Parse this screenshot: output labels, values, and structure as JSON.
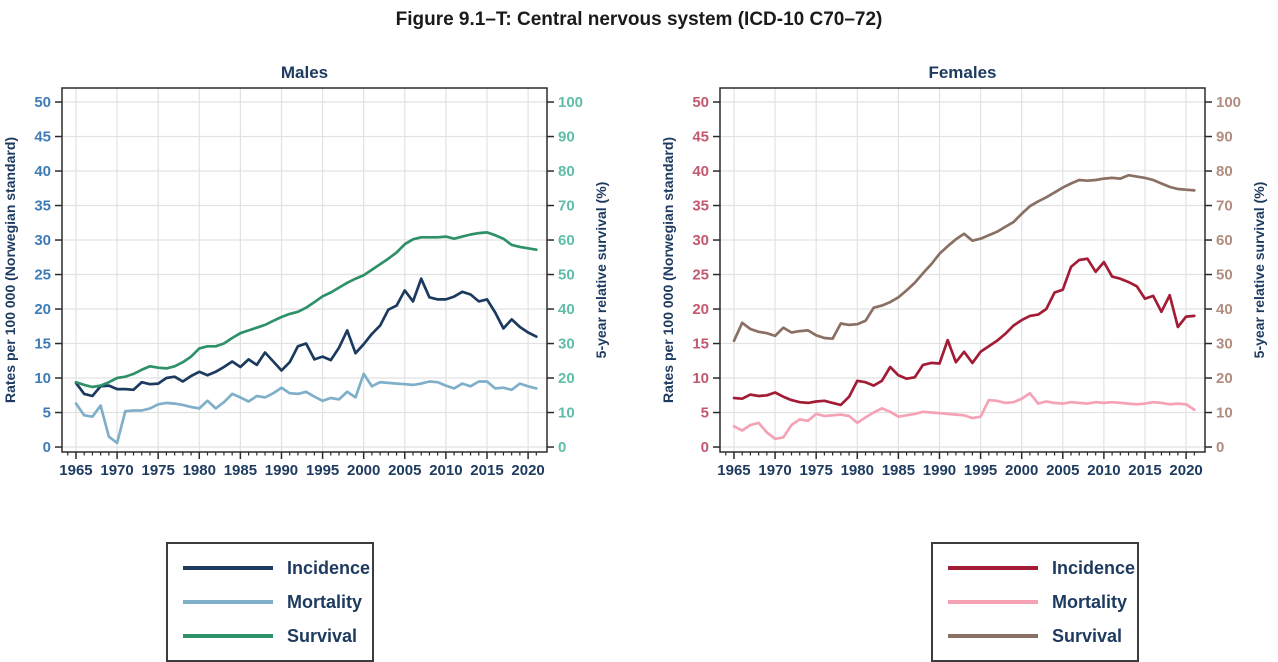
{
  "figure": {
    "title": "Figure 9.1–T: Central nervous system (ICD-10 C70–72)"
  },
  "style": {
    "grid_color": "#E2E2E2",
    "border_color": "#2B2B2B",
    "text_navy": "#1D3A5F",
    "title_color": "#1A1A1A"
  },
  "chart_data": [
    {
      "type": "line",
      "title": "Males",
      "ylabel_left": "Rates per 100 000 (Norwegian standard)",
      "ylabel_right": "5-year relative survival (%)",
      "x_start": 1965,
      "x_end": 2021,
      "x_ticks": [
        1965,
        1970,
        1975,
        1980,
        1985,
        1990,
        1995,
        2000,
        2005,
        2010,
        2015,
        2020
      ],
      "ylim_left": [
        0,
        50
      ],
      "yticks_left": [
        0,
        5,
        10,
        15,
        20,
        25,
        30,
        35,
        40,
        45,
        50
      ],
      "ylim_right": [
        0,
        100
      ],
      "yticks_right": [
        0,
        10,
        20,
        30,
        40,
        50,
        60,
        70,
        80,
        90,
        100
      ],
      "tick_color_left": "#3E7CB8",
      "tick_color_right": "#5EBEA8",
      "grid": true,
      "legend_position": "below",
      "series": [
        {
          "name": "Incidence",
          "axis": "left",
          "color": "#1B3A5E",
          "values": [
            9.3,
            7.7,
            7.4,
            8.8,
            8.9,
            8.4,
            8.4,
            8.3,
            9.4,
            9.1,
            9.2,
            10.0,
            10.2,
            9.5,
            10.3,
            10.9,
            10.4,
            10.9,
            11.6,
            12.4,
            11.6,
            12.7,
            11.9,
            13.7,
            12.4,
            11.1,
            12.3,
            14.6,
            15.0,
            12.7,
            13.1,
            12.6,
            14.4,
            16.9,
            13.6,
            14.9,
            16.4,
            17.6,
            19.9,
            20.5,
            22.7,
            21.1,
            24.4,
            21.7,
            21.4,
            21.4,
            21.8,
            22.5,
            22.1,
            21.1,
            21.4,
            19.5,
            17.2,
            18.5,
            17.4,
            16.6,
            16.0
          ]
        },
        {
          "name": "Mortality",
          "axis": "left",
          "color": "#7FAFC9",
          "values": [
            6.3,
            4.6,
            4.4,
            6.0,
            1.5,
            0.6,
            5.2,
            5.3,
            5.3,
            5.6,
            6.2,
            6.4,
            6.3,
            6.1,
            5.8,
            5.6,
            6.7,
            5.6,
            6.5,
            7.7,
            7.2,
            6.6,
            7.4,
            7.2,
            7.8,
            8.6,
            7.8,
            7.7,
            8.0,
            7.3,
            6.7,
            7.1,
            6.9,
            8.0,
            7.2,
            10.6,
            8.8,
            9.4,
            9.3,
            9.2,
            9.1,
            9.0,
            9.2,
            9.5,
            9.4,
            8.9,
            8.5,
            9.2,
            8.8,
            9.5,
            9.5,
            8.5,
            8.6,
            8.3,
            9.2,
            8.8,
            8.5
          ]
        },
        {
          "name": "Survival",
          "axis": "right",
          "color": "#2E9167",
          "values": [
            18.8,
            18.0,
            17.4,
            17.8,
            18.8,
            20.0,
            20.4,
            21.2,
            22.4,
            23.4,
            23.0,
            22.8,
            23.4,
            24.6,
            26.2,
            28.6,
            29.2,
            29.2,
            30.0,
            31.6,
            33.0,
            33.8,
            34.6,
            35.4,
            36.6,
            37.7,
            38.6,
            39.2,
            40.4,
            42.0,
            43.7,
            44.8,
            46.2,
            47.6,
            48.8,
            49.8,
            51.4,
            53.0,
            54.6,
            56.4,
            58.8,
            60.2,
            60.8,
            60.8,
            60.8,
            61.0,
            60.4,
            61.0,
            61.6,
            62.0,
            62.2,
            61.4,
            60.4,
            58.6,
            58.0,
            57.6,
            57.2
          ]
        }
      ]
    },
    {
      "type": "line",
      "title": "Females",
      "ylabel_left": "Rates per 100 000 (Norwegian standard)",
      "ylabel_right": "5-year relative survival (%)",
      "x_start": 1965,
      "x_end": 2021,
      "x_ticks": [
        1965,
        1970,
        1975,
        1980,
        1985,
        1990,
        1995,
        2000,
        2005,
        2010,
        2015,
        2020
      ],
      "ylim_left": [
        0,
        50
      ],
      "yticks_left": [
        0,
        5,
        10,
        15,
        20,
        25,
        30,
        35,
        40,
        45,
        50
      ],
      "ylim_right": [
        0,
        100
      ],
      "yticks_right": [
        0,
        10,
        20,
        30,
        40,
        50,
        60,
        70,
        80,
        90,
        100
      ],
      "tick_color_left": "#C4586F",
      "tick_color_right": "#B18D80",
      "grid": true,
      "legend_position": "below",
      "series": [
        {
          "name": "Incidence",
          "axis": "left",
          "color": "#A31C35",
          "values": [
            7.1,
            7.0,
            7.6,
            7.4,
            7.5,
            7.9,
            7.3,
            6.8,
            6.5,
            6.4,
            6.6,
            6.7,
            6.4,
            6.1,
            7.3,
            9.6,
            9.4,
            8.9,
            9.6,
            11.6,
            10.4,
            9.9,
            10.1,
            11.9,
            12.2,
            12.1,
            15.5,
            12.3,
            13.8,
            12.2,
            13.8,
            14.6,
            15.4,
            16.4,
            17.6,
            18.4,
            19.0,
            19.2,
            20.0,
            22.4,
            22.8,
            26.1,
            27.1,
            27.3,
            25.4,
            26.8,
            24.7,
            24.4,
            23.9,
            23.3,
            21.5,
            21.9,
            19.6,
            22.0,
            17.4,
            18.9,
            19.0
          ]
        },
        {
          "name": "Mortality",
          "axis": "left",
          "color": "#F5A3B4",
          "values": [
            3.0,
            2.4,
            3.2,
            3.5,
            2.1,
            1.2,
            1.4,
            3.2,
            4.0,
            3.8,
            4.8,
            4.5,
            4.6,
            4.7,
            4.5,
            3.5,
            4.3,
            5.0,
            5.6,
            5.1,
            4.4,
            4.6,
            4.8,
            5.1,
            5.0,
            4.9,
            4.8,
            4.7,
            4.6,
            4.2,
            4.4,
            6.8,
            6.7,
            6.4,
            6.5,
            7.0,
            7.8,
            6.3,
            6.6,
            6.4,
            6.3,
            6.5,
            6.4,
            6.3,
            6.5,
            6.4,
            6.5,
            6.4,
            6.3,
            6.2,
            6.3,
            6.5,
            6.4,
            6.2,
            6.3,
            6.2,
            5.4
          ]
        },
        {
          "name": "Survival",
          "axis": "right",
          "color": "#8A7064",
          "values": [
            30.8,
            36.0,
            34.2,
            33.4,
            33.0,
            32.2,
            34.6,
            33.2,
            33.6,
            33.8,
            32.4,
            31.6,
            31.4,
            35.8,
            35.4,
            35.6,
            36.6,
            40.4,
            41.0,
            42.0,
            43.4,
            45.4,
            47.6,
            50.4,
            53.0,
            56.0,
            58.2,
            60.2,
            61.8,
            59.8,
            60.4,
            61.4,
            62.4,
            63.8,
            65.2,
            67.6,
            69.8,
            71.2,
            72.4,
            73.8,
            75.2,
            76.4,
            77.4,
            77.2,
            77.4,
            77.8,
            78.0,
            77.8,
            78.8,
            78.4,
            78.0,
            77.4,
            76.4,
            75.4,
            74.8,
            74.6,
            74.4
          ]
        }
      ]
    }
  ]
}
